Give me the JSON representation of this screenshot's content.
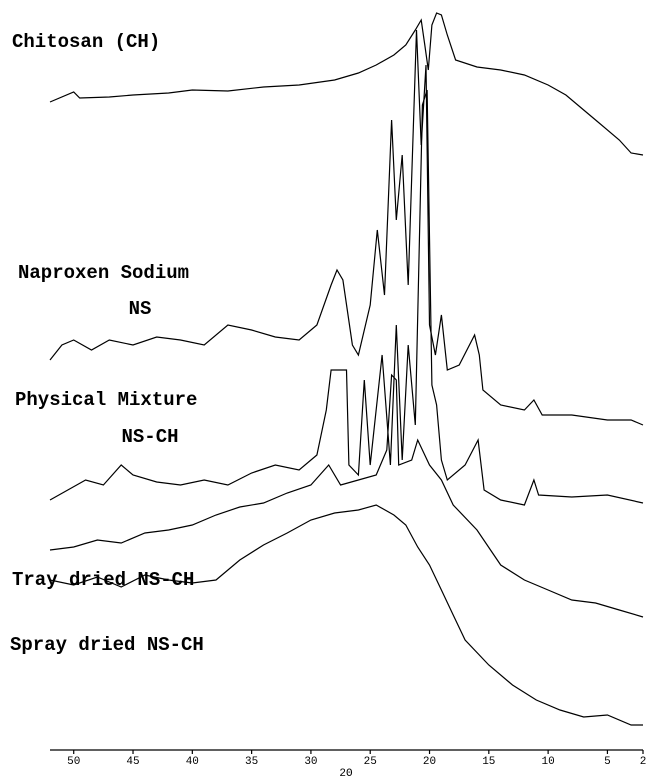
{
  "chart_data": {
    "type": "line",
    "x_label": "2Θ",
    "xlim": [
      52,
      2
    ],
    "xticks": [
      50,
      45,
      40,
      35,
      30,
      25,
      20,
      15,
      10,
      5,
      2
    ],
    "ylim": [
      0,
      750
    ],
    "series": [
      {
        "name": "Chitosan (CH)",
        "color": "#000000",
        "x": [
          52,
          50,
          49.5,
          47,
          45,
          42,
          40,
          37,
          34,
          31,
          28,
          26,
          24.5,
          23,
          22,
          21.2,
          20.7,
          20.4,
          20.1,
          19.8,
          19.4,
          19,
          18.5,
          17.8,
          16,
          14,
          12,
          10,
          8.5,
          7,
          6,
          4,
          3,
          2
        ],
        "values": [
          663,
          673,
          667,
          668,
          670,
          672,
          675,
          674,
          678,
          680,
          685,
          692,
          700,
          710,
          720,
          735,
          745,
          720,
          695,
          740,
          752,
          750,
          730,
          705,
          698,
          695,
          690,
          680,
          670,
          655,
          645,
          625,
          612,
          610
        ]
      },
      {
        "name": [
          "Naproxen Sodium",
          "NS"
        ],
        "color": "#000000",
        "x": [
          52,
          51,
          50,
          48.5,
          47,
          45,
          43,
          41,
          39,
          37,
          35,
          33,
          31,
          29.5,
          28.3,
          27.8,
          27.3,
          26.5,
          26,
          25,
          24.4,
          23.8,
          23.2,
          22.8,
          22.3,
          21.8,
          21.1,
          20.7,
          20.3,
          20,
          19.5,
          19,
          18.5,
          17.5,
          16.2,
          15.8,
          15.5,
          14,
          12,
          11.2,
          10.5,
          8,
          5,
          3,
          2
        ],
        "values": [
          405,
          420,
          425,
          415,
          425,
          420,
          428,
          425,
          420,
          440,
          435,
          428,
          425,
          440,
          480,
          495,
          485,
          420,
          410,
          460,
          535,
          470,
          645,
          545,
          610,
          480,
          735,
          620,
          700,
          440,
          410,
          450,
          395,
          400,
          430,
          410,
          375,
          360,
          355,
          365,
          350,
          350,
          345,
          345,
          340
        ]
      },
      {
        "name": [
          "Physical Mixture",
          "NS-CH"
        ],
        "color": "#000000",
        "x": [
          52,
          50.5,
          49,
          47.5,
          46,
          45,
          43,
          41,
          39,
          37,
          35,
          33,
          31,
          29.5,
          28.7,
          28.3,
          27,
          26.8,
          26,
          25.5,
          25,
          24,
          23.3,
          22.8,
          22.3,
          21.8,
          21.2,
          20.6,
          20.2,
          19.8,
          19.4,
          19,
          18.5,
          17,
          15.9,
          15.4,
          14,
          12,
          11.2,
          10.8,
          8,
          5,
          2
        ],
        "values": [
          265,
          275,
          285,
          280,
          300,
          290,
          283,
          280,
          285,
          280,
          292,
          300,
          295,
          310,
          355,
          395,
          395,
          300,
          290,
          385,
          300,
          410,
          300,
          440,
          305,
          420,
          340,
          660,
          675,
          380,
          360,
          305,
          285,
          300,
          325,
          275,
          265,
          260,
          285,
          270,
          268,
          270,
          262
        ]
      },
      {
        "name": "Tray dried NS-CH",
        "color": "#000000",
        "x": [
          52,
          50,
          48,
          46,
          44,
          42,
          40,
          38,
          36,
          34,
          32,
          30,
          28.5,
          27.5,
          26,
          24.5,
          23.6,
          23.2,
          22.8,
          22.6,
          21.5,
          21,
          20,
          19,
          18,
          16,
          14,
          12,
          10,
          8,
          6,
          4,
          2
        ],
        "values": [
          215,
          218,
          225,
          222,
          232,
          235,
          240,
          250,
          258,
          262,
          272,
          280,
          300,
          280,
          285,
          290,
          315,
          390,
          385,
          300,
          305,
          325,
          300,
          285,
          260,
          235,
          200,
          185,
          175,
          165,
          162,
          155,
          148
        ]
      },
      {
        "name": "Spray dried NS-CH",
        "color": "#000000",
        "x": [
          52,
          50,
          48,
          46,
          44,
          42,
          40,
          38,
          36,
          34,
          32,
          30,
          28,
          26,
          24.5,
          23,
          22,
          21,
          20,
          19,
          18,
          17,
          15,
          13,
          11,
          9,
          7,
          5,
          3,
          2
        ],
        "values": [
          185,
          180,
          188,
          178,
          190,
          185,
          182,
          185,
          205,
          220,
          232,
          245,
          252,
          255,
          260,
          250,
          240,
          218,
          200,
          175,
          150,
          125,
          100,
          80,
          65,
          55,
          48,
          50,
          40,
          40
        ]
      }
    ]
  }
}
